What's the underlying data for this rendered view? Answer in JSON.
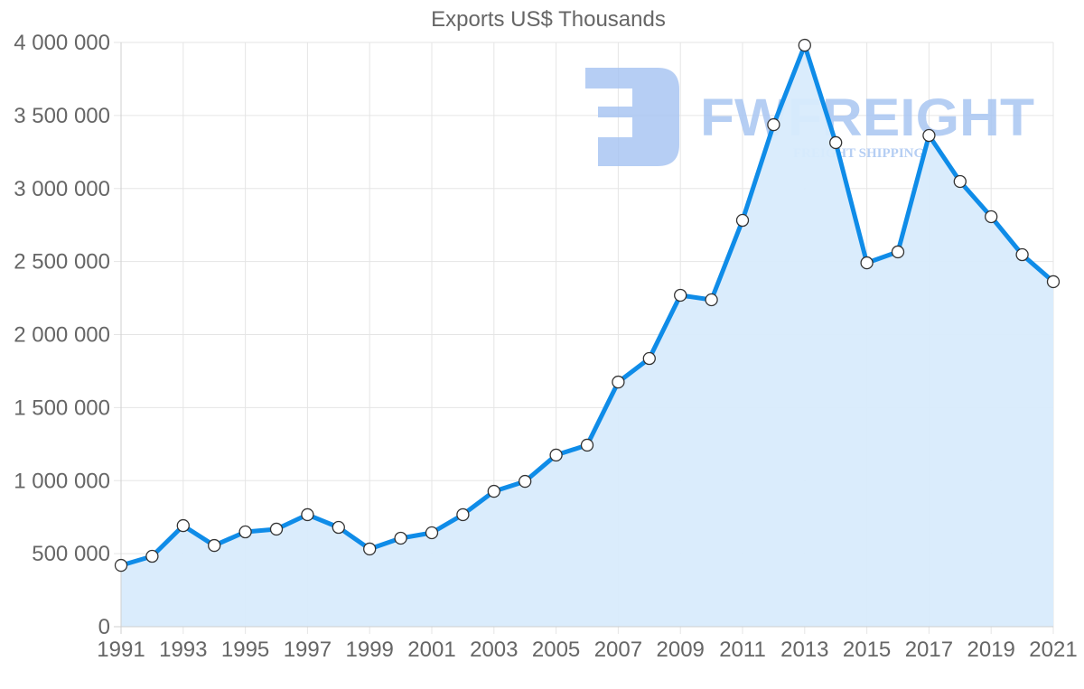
{
  "chart_data": {
    "type": "line",
    "title": "Exports US$ Thousands",
    "xlabel": "",
    "ylabel": "",
    "ylim": [
      0,
      4000000
    ],
    "yticks": [
      0,
      500000,
      1000000,
      1500000,
      2000000,
      2500000,
      3000000,
      3500000,
      4000000
    ],
    "ytick_labels": [
      "0",
      "500 000",
      "1 000 000",
      "1 500 000",
      "2 000 000",
      "2 500 000",
      "3 000 000",
      "3 500 000",
      "4 000 000"
    ],
    "xtick_labels": [
      "1991",
      "1993",
      "1995",
      "1997",
      "1999",
      "2001",
      "2003",
      "2005",
      "2007",
      "2009",
      "2011",
      "2013",
      "2015",
      "2017",
      "2019",
      "2021"
    ],
    "grid": true,
    "legend": null,
    "fill": true,
    "x": [
      1991,
      1992,
      1993,
      1994,
      1995,
      1996,
      1997,
      1998,
      1999,
      2000,
      2001,
      2002,
      2003,
      2004,
      2005,
      2006,
      2007,
      2008,
      2009,
      2010,
      2011,
      2012,
      2013,
      2014,
      2015,
      2016,
      2017,
      2018,
      2019,
      2020,
      2021
    ],
    "series": [
      {
        "name": "Exports US$ Thousands",
        "values": [
          420000,
          482000,
          692000,
          556000,
          649000,
          668000,
          767000,
          680000,
          532000,
          606000,
          643000,
          767000,
          927000,
          995000,
          1175000,
          1243000,
          1675000,
          1836000,
          2269000,
          2238000,
          2782000,
          3437000,
          3981000,
          3314000,
          2491000,
          2566000,
          3363000,
          3048000,
          2807000,
          2547000,
          2362000
        ]
      }
    ]
  },
  "colors": {
    "line": "#0f8ce8",
    "fill": "#d8ebfc",
    "marker_fill": "#ffffff",
    "marker_stroke": "#333333",
    "grid": "#e5e5e5",
    "text": "#666666",
    "watermark": "#a9c6f2"
  },
  "watermark": {
    "brand": "FWFREIGHT",
    "tagline": "FREIGHT SHIPPING"
  }
}
